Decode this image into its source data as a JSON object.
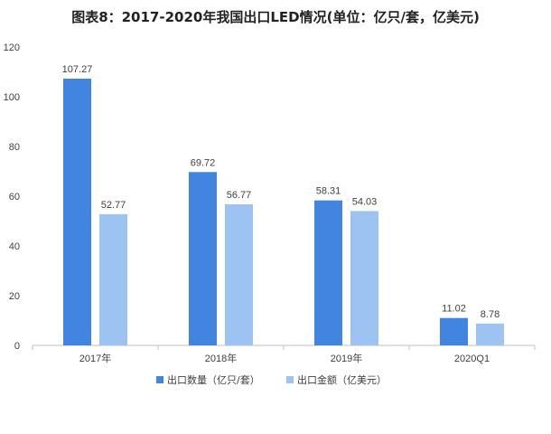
{
  "title": "图表8：2017-2020年我国出口LED情况(单位：亿只/套，亿美元)",
  "chart_data": {
    "type": "bar",
    "title": "图表8：2017-2020年我国出口LED情况(单位：亿只/套，亿美元)",
    "categories": [
      "2017年",
      "2018年",
      "2019年",
      "2020Q1"
    ],
    "series": [
      {
        "name": "出口数量（亿只/套）",
        "values": [
          107.27,
          69.72,
          58.31,
          11.02
        ],
        "labels": [
          "107.27",
          "69.72",
          "58.31",
          "11.02"
        ],
        "color": "#4185e0"
      },
      {
        "name": "出口金额（亿美元）",
        "values": [
          52.77,
          56.77,
          54.03,
          8.78
        ],
        "labels": [
          "52.77",
          "56.77",
          "54.03",
          "8.78"
        ],
        "color": "#9dc3f2"
      }
    ],
    "yticks": [
      "0",
      "20",
      "40",
      "60",
      "80",
      "100",
      "120"
    ],
    "ylim": [
      0,
      120
    ],
    "grid": false,
    "legend_position": "bottom",
    "axis_line_color": "#bfbfbf"
  }
}
